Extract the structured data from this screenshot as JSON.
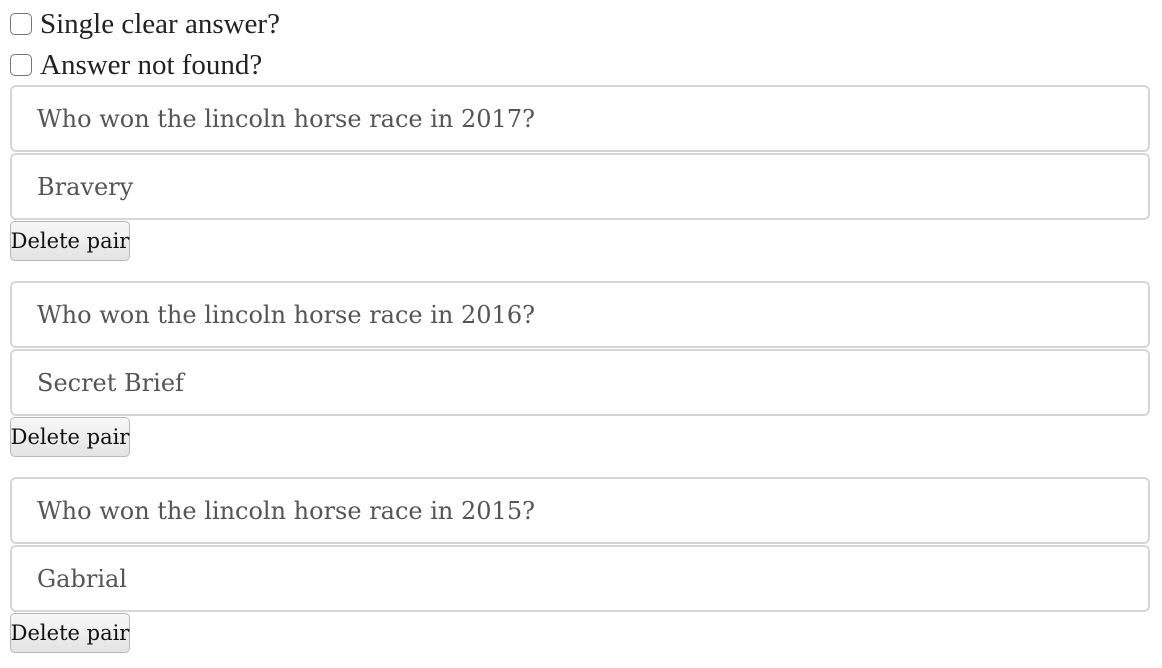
{
  "checkboxes": [
    {
      "label": "Single clear answer?",
      "checked": false
    },
    {
      "label": "Answer not found?",
      "checked": false
    }
  ],
  "pairs": [
    {
      "question": "Who won the lincoln horse race in 2017?",
      "answer": "Bravery",
      "delete_label": "Delete pair"
    },
    {
      "question": "Who won the lincoln horse race in 2016?",
      "answer": "Secret Brief",
      "delete_label": "Delete pair"
    },
    {
      "question": "Who won the lincoln horse race in 2015?",
      "answer": "Gabrial",
      "delete_label": "Delete pair"
    }
  ]
}
